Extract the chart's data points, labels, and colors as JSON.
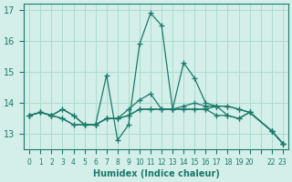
{
  "xlabel": "Humidex (Indice chaleur)",
  "ylabel": "",
  "bg_color": "#d4eeea",
  "grid_color": "#aaddcc",
  "line_color": "#1a7a6a",
  "xlim": [
    -0.5,
    23.5
  ],
  "ylim": [
    12.5,
    17.2
  ],
  "yticks": [
    13,
    14,
    15,
    16,
    17
  ],
  "xtick_labels": [
    "0",
    "1",
    "2",
    "3",
    "4",
    "5",
    "6",
    "7",
    "8",
    "9",
    "10",
    "11",
    "12",
    "13",
    "14",
    "15",
    "16",
    "17",
    "18",
    "19",
    "20",
    "",
    "22",
    "23"
  ],
  "x": [
    0,
    1,
    2,
    3,
    4,
    5,
    6,
    7,
    8,
    9,
    10,
    11,
    12,
    13,
    14,
    15,
    16,
    17,
    18,
    19,
    20,
    22,
    23
  ],
  "line1": [
    13.6,
    13.7,
    13.6,
    13.8,
    13.6,
    13.3,
    13.3,
    14.9,
    12.8,
    13.3,
    15.9,
    16.9,
    16.5,
    13.8,
    15.3,
    14.8,
    14.0,
    13.9,
    13.9,
    13.8,
    13.7,
    13.1,
    12.7
  ],
  "line2": [
    13.6,
    13.7,
    13.6,
    13.8,
    13.6,
    13.3,
    13.3,
    13.5,
    13.5,
    13.6,
    13.8,
    13.8,
    13.8,
    13.8,
    13.8,
    13.8,
    13.8,
    13.9,
    13.9,
    13.8,
    13.7,
    13.1,
    12.7
  ],
  "line3": [
    13.6,
    13.7,
    13.6,
    13.5,
    13.3,
    13.3,
    13.3,
    13.5,
    13.5,
    13.6,
    13.8,
    13.8,
    13.8,
    13.8,
    13.8,
    13.8,
    13.8,
    13.6,
    13.6,
    13.5,
    13.7,
    13.1,
    12.7
  ],
  "line4": [
    13.6,
    13.7,
    13.6,
    13.5,
    13.3,
    13.3,
    13.3,
    13.5,
    13.5,
    13.8,
    14.1,
    14.3,
    13.8,
    13.8,
    13.9,
    14.0,
    13.9,
    13.9,
    13.6,
    13.5,
    13.7,
    13.1,
    12.7
  ]
}
